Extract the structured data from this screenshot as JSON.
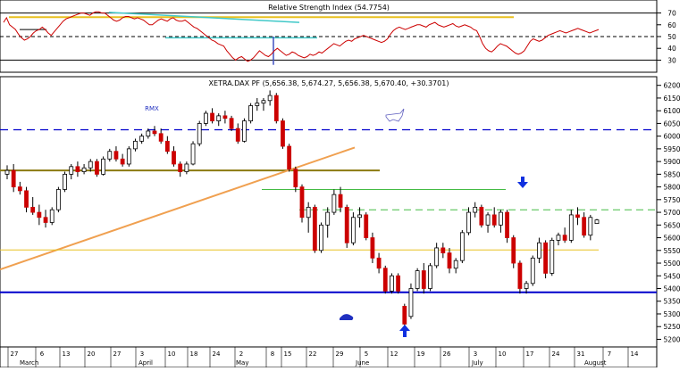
{
  "chart_data": [
    {
      "type": "line",
      "title": "Relative Strength Index (54.7754)",
      "y_ticks": [
        30,
        40,
        50,
        60,
        70
      ],
      "ylim": [
        22,
        78
      ],
      "series": [
        {
          "color": "#cc0000",
          "x": [
            0,
            1,
            2,
            3,
            4,
            5,
            6,
            7,
            8,
            9,
            10,
            11,
            12,
            13,
            14,
            15,
            16,
            17,
            18,
            19,
            20,
            21,
            22,
            23,
            24,
            25,
            26,
            27,
            28,
            29,
            30,
            31,
            32,
            33,
            34,
            35,
            36,
            37,
            38,
            39,
            40,
            41,
            42,
            43,
            44,
            45,
            46,
            47,
            48,
            49,
            50,
            51,
            52,
            53,
            54,
            55,
            56,
            57,
            58,
            59,
            60,
            61,
            62,
            63,
            64,
            65,
            66,
            67,
            68,
            69,
            70,
            71,
            72,
            73,
            74,
            75,
            76,
            77,
            78,
            79,
            80,
            81,
            82,
            83,
            84,
            85,
            86,
            87,
            88,
            89,
            90,
            91,
            92,
            93,
            94,
            95,
            96,
            97,
            98,
            99,
            100,
            101,
            102,
            103,
            104,
            105,
            106,
            107,
            108,
            109,
            110,
            111,
            112,
            113,
            114,
            115,
            116,
            117,
            118,
            119,
            120,
            121,
            122,
            123,
            124,
            125,
            126,
            127,
            128,
            129,
            130,
            131,
            132,
            133,
            134,
            135,
            136,
            137,
            138,
            139,
            140,
            141,
            142,
            143,
            144,
            145,
            146,
            147,
            148,
            149,
            150,
            151,
            152,
            153,
            154,
            155,
            156,
            157,
            158,
            159,
            160,
            161,
            162,
            163,
            164,
            165,
            166,
            167,
            168,
            169,
            170,
            171,
            172,
            173,
            174,
            175,
            176,
            177,
            178,
            179,
            180,
            181,
            182,
            183,
            184,
            185,
            186,
            187,
            188,
            189,
            190,
            191,
            192,
            193,
            194,
            195,
            196,
            197,
            198,
            199,
            200
          ],
          "values": [
            62,
            66,
            60,
            58,
            56,
            52,
            49,
            47,
            48,
            50,
            53,
            55,
            56,
            58,
            56,
            53,
            51,
            54,
            57,
            60,
            63,
            65,
            66,
            67,
            68,
            69,
            70,
            70,
            69,
            68,
            70,
            71,
            71,
            70,
            70,
            68,
            66,
            64,
            63,
            64,
            66,
            67,
            67,
            66,
            65,
            66,
            65,
            64,
            62,
            60,
            60,
            62,
            64,
            65,
            64,
            63,
            65,
            66,
            64,
            63,
            63,
            64,
            62,
            60,
            58,
            57,
            55,
            53,
            51,
            49,
            47,
            46,
            44,
            43,
            42,
            38,
            35,
            32,
            30,
            32,
            33,
            31,
            29,
            30,
            32,
            35,
            38,
            36,
            34,
            33,
            35,
            38,
            40,
            38,
            36,
            34,
            35,
            37,
            36,
            34,
            33,
            32,
            33,
            35,
            34,
            35,
            37,
            36,
            38,
            40,
            42,
            44,
            43,
            42,
            44,
            46,
            47,
            46,
            48,
            49,
            50,
            51,
            50,
            49,
            48,
            47,
            46,
            45,
            46,
            48,
            52,
            55,
            57,
            58,
            57,
            56,
            57,
            58,
            59,
            60,
            60,
            59,
            58,
            60,
            61,
            62,
            60,
            59,
            58,
            59,
            60,
            61,
            59,
            58,
            59,
            60,
            59,
            58,
            56,
            55,
            50,
            44,
            40,
            38,
            37,
            39,
            42,
            44,
            43,
            42,
            40,
            38,
            36,
            35,
            36,
            38,
            42,
            46,
            48,
            47,
            46,
            47,
            49,
            51,
            52,
            53,
            54,
            55,
            54,
            53,
            54,
            55,
            56,
            57,
            56,
            55,
            54,
            53,
            54,
            55,
            56
          ]
        }
      ]
    },
    {
      "type": "candlestick",
      "title": "XETRA.DAX PF (5,656.38, 5,674.27, 5,656.38, 5,670.40, +30.3701)",
      "y_ticks": [
        5200,
        5250,
        5300,
        5350,
        5400,
        5450,
        5500,
        5550,
        5600,
        5650,
        5700,
        5750,
        5800,
        5850,
        5900,
        5950,
        6000,
        6050,
        6100,
        6150,
        6200
      ],
      "ylim": [
        5170,
        6220
      ],
      "x_ticks": [
        "27",
        "6",
        "13",
        "20",
        "27",
        "3",
        "10",
        "18",
        "24",
        "2",
        "8",
        "15",
        "22",
        "29",
        "5",
        "12",
        "19",
        "26",
        "3",
        "10",
        "17",
        "24",
        "31",
        "7",
        "14"
      ],
      "month_labels": [
        "March",
        "April",
        "May",
        "June",
        "July",
        "August"
      ],
      "annotations": [
        "RMX"
      ],
      "candles": [
        {
          "o": 5850,
          "h": 5885,
          "l": 5830,
          "c": 5865
        },
        {
          "o": 5865,
          "h": 5890,
          "l": 5780,
          "c": 5800
        },
        {
          "o": 5800,
          "h": 5820,
          "l": 5770,
          "c": 5785
        },
        {
          "o": 5785,
          "h": 5800,
          "l": 5700,
          "c": 5720
        },
        {
          "o": 5720,
          "h": 5760,
          "l": 5690,
          "c": 5700
        },
        {
          "o": 5700,
          "h": 5730,
          "l": 5650,
          "c": 5680
        },
        {
          "o": 5680,
          "h": 5710,
          "l": 5640,
          "c": 5660
        },
        {
          "o": 5660,
          "h": 5720,
          "l": 5650,
          "c": 5710
        },
        {
          "o": 5710,
          "h": 5800,
          "l": 5700,
          "c": 5790
        },
        {
          "o": 5790,
          "h": 5860,
          "l": 5780,
          "c": 5850
        },
        {
          "o": 5850,
          "h": 5890,
          "l": 5830,
          "c": 5880
        },
        {
          "o": 5880,
          "h": 5900,
          "l": 5840,
          "c": 5860
        },
        {
          "o": 5860,
          "h": 5890,
          "l": 5850,
          "c": 5875
        },
        {
          "o": 5875,
          "h": 5910,
          "l": 5860,
          "c": 5900
        },
        {
          "o": 5900,
          "h": 5910,
          "l": 5840,
          "c": 5850
        },
        {
          "o": 5850,
          "h": 5920,
          "l": 5845,
          "c": 5910
        },
        {
          "o": 5910,
          "h": 5950,
          "l": 5900,
          "c": 5940
        },
        {
          "o": 5940,
          "h": 5960,
          "l": 5900,
          "c": 5910
        },
        {
          "o": 5910,
          "h": 5930,
          "l": 5880,
          "c": 5890
        },
        {
          "o": 5890,
          "h": 5960,
          "l": 5880,
          "c": 5950
        },
        {
          "o": 5950,
          "h": 5990,
          "l": 5940,
          "c": 5980
        },
        {
          "o": 5980,
          "h": 6010,
          "l": 5970,
          "c": 6000
        },
        {
          "o": 6000,
          "h": 6030,
          "l": 5990,
          "c": 6020
        },
        {
          "o": 6020,
          "h": 6040,
          "l": 6000,
          "c": 6010
        },
        {
          "o": 6010,
          "h": 6030,
          "l": 5970,
          "c": 5980
        },
        {
          "o": 5980,
          "h": 6000,
          "l": 5930,
          "c": 5940
        },
        {
          "o": 5940,
          "h": 5960,
          "l": 5880,
          "c": 5890
        },
        {
          "o": 5890,
          "h": 5900,
          "l": 5840,
          "c": 5860
        },
        {
          "o": 5860,
          "h": 5900,
          "l": 5850,
          "c": 5890
        },
        {
          "o": 5890,
          "h": 5980,
          "l": 5885,
          "c": 5970
        },
        {
          "o": 5970,
          "h": 6060,
          "l": 5960,
          "c": 6050
        },
        {
          "o": 6050,
          "h": 6100,
          "l": 6040,
          "c": 6090
        },
        {
          "o": 6090,
          "h": 6110,
          "l": 6050,
          "c": 6060
        },
        {
          "o": 6060,
          "h": 6090,
          "l": 6040,
          "c": 6080
        },
        {
          "o": 6080,
          "h": 6100,
          "l": 6050,
          "c": 6070
        },
        {
          "o": 6070,
          "h": 6080,
          "l": 6020,
          "c": 6030
        },
        {
          "o": 6030,
          "h": 6050,
          "l": 5970,
          "c": 5980
        },
        {
          "o": 5980,
          "h": 6070,
          "l": 5975,
          "c": 6060
        },
        {
          "o": 6060,
          "h": 6130,
          "l": 6050,
          "c": 6120
        },
        {
          "o": 6120,
          "h": 6150,
          "l": 6100,
          "c": 6130
        },
        {
          "o": 6130,
          "h": 6150,
          "l": 6100,
          "c": 6140
        },
        {
          "o": 6140,
          "h": 6180,
          "l": 6120,
          "c": 6160
        },
        {
          "o": 6160,
          "h": 6170,
          "l": 6050,
          "c": 6060
        },
        {
          "o": 6060,
          "h": 6070,
          "l": 5950,
          "c": 5960
        },
        {
          "o": 5960,
          "h": 5970,
          "l": 5860,
          "c": 5870
        },
        {
          "o": 5870,
          "h": 5880,
          "l": 5780,
          "c": 5800
        },
        {
          "o": 5800,
          "h": 5810,
          "l": 5660,
          "c": 5680
        },
        {
          "o": 5680,
          "h": 5740,
          "l": 5620,
          "c": 5720
        },
        {
          "o": 5720,
          "h": 5730,
          "l": 5540,
          "c": 5550
        },
        {
          "o": 5550,
          "h": 5660,
          "l": 5540,
          "c": 5650
        },
        {
          "o": 5650,
          "h": 5720,
          "l": 5600,
          "c": 5700
        },
        {
          "o": 5700,
          "h": 5790,
          "l": 5690,
          "c": 5770
        },
        {
          "o": 5770,
          "h": 5800,
          "l": 5700,
          "c": 5720
        },
        {
          "o": 5720,
          "h": 5730,
          "l": 5560,
          "c": 5580
        },
        {
          "o": 5580,
          "h": 5700,
          "l": 5570,
          "c": 5680
        },
        {
          "o": 5680,
          "h": 5720,
          "l": 5640,
          "c": 5690
        },
        {
          "o": 5690,
          "h": 5700,
          "l": 5590,
          "c": 5600
        },
        {
          "o": 5600,
          "h": 5620,
          "l": 5500,
          "c": 5520
        },
        {
          "o": 5520,
          "h": 5540,
          "l": 5460,
          "c": 5480
        },
        {
          "o": 5480,
          "h": 5490,
          "l": 5380,
          "c": 5390
        },
        {
          "o": 5390,
          "h": 5460,
          "l": 5380,
          "c": 5450
        },
        {
          "o": 5450,
          "h": 5460,
          "l": 5380,
          "c": 5390
        },
        {
          "o": 5330,
          "h": 5340,
          "l": 5240,
          "c": 5260
        },
        {
          "o": 5290,
          "h": 5420,
          "l": 5280,
          "c": 5400
        },
        {
          "o": 5400,
          "h": 5480,
          "l": 5390,
          "c": 5470
        },
        {
          "o": 5470,
          "h": 5500,
          "l": 5380,
          "c": 5400
        },
        {
          "o": 5400,
          "h": 5500,
          "l": 5390,
          "c": 5490
        },
        {
          "o": 5490,
          "h": 5580,
          "l": 5480,
          "c": 5560
        },
        {
          "o": 5560,
          "h": 5580,
          "l": 5520,
          "c": 5540
        },
        {
          "o": 5540,
          "h": 5560,
          "l": 5460,
          "c": 5480
        },
        {
          "o": 5480,
          "h": 5520,
          "l": 5460,
          "c": 5510
        },
        {
          "o": 5510,
          "h": 5630,
          "l": 5500,
          "c": 5620
        },
        {
          "o": 5620,
          "h": 5720,
          "l": 5610,
          "c": 5700
        },
        {
          "o": 5700,
          "h": 5740,
          "l": 5680,
          "c": 5720
        },
        {
          "o": 5720,
          "h": 5730,
          "l": 5640,
          "c": 5650
        },
        {
          "o": 5650,
          "h": 5700,
          "l": 5620,
          "c": 5690
        },
        {
          "o": 5690,
          "h": 5720,
          "l": 5640,
          "c": 5650
        },
        {
          "o": 5650,
          "h": 5710,
          "l": 5620,
          "c": 5700
        },
        {
          "o": 5700,
          "h": 5710,
          "l": 5580,
          "c": 5600
        },
        {
          "o": 5600,
          "h": 5610,
          "l": 5480,
          "c": 5500
        },
        {
          "o": 5500,
          "h": 5510,
          "l": 5380,
          "c": 5400
        },
        {
          "o": 5400,
          "h": 5430,
          "l": 5380,
          "c": 5420
        },
        {
          "o": 5420,
          "h": 5530,
          "l": 5410,
          "c": 5520
        },
        {
          "o": 5520,
          "h": 5600,
          "l": 5500,
          "c": 5580
        },
        {
          "o": 5580,
          "h": 5590,
          "l": 5440,
          "c": 5460
        },
        {
          "o": 5460,
          "h": 5600,
          "l": 5450,
          "c": 5590
        },
        {
          "o": 5590,
          "h": 5620,
          "l": 5570,
          "c": 5610
        },
        {
          "o": 5610,
          "h": 5640,
          "l": 5580,
          "c": 5590
        },
        {
          "o": 5590,
          "h": 5710,
          "l": 5580,
          "c": 5690
        },
        {
          "o": 5690,
          "h": 5720,
          "l": 5650,
          "c": 5680
        },
        {
          "o": 5680,
          "h": 5700,
          "l": 5600,
          "c": 5610
        },
        {
          "o": 5610,
          "h": 5690,
          "l": 5590,
          "c": 5680
        },
        {
          "o": 5656,
          "h": 5674,
          "l": 5656,
          "c": 5670
        }
      ]
    }
  ],
  "colors": {
    "rsi_line": "#cc0000",
    "candle_up": "#ffffff",
    "candle_down": "#cc0000",
    "support_blue": "#0000cc",
    "trend_orange": "#f0a050",
    "olive_line": "#8b7a10",
    "green_line": "#44bb44",
    "yellow_line": "#e8c020",
    "cyan_line": "#40c8c8",
    "arrow_blue": "#1030e0"
  }
}
